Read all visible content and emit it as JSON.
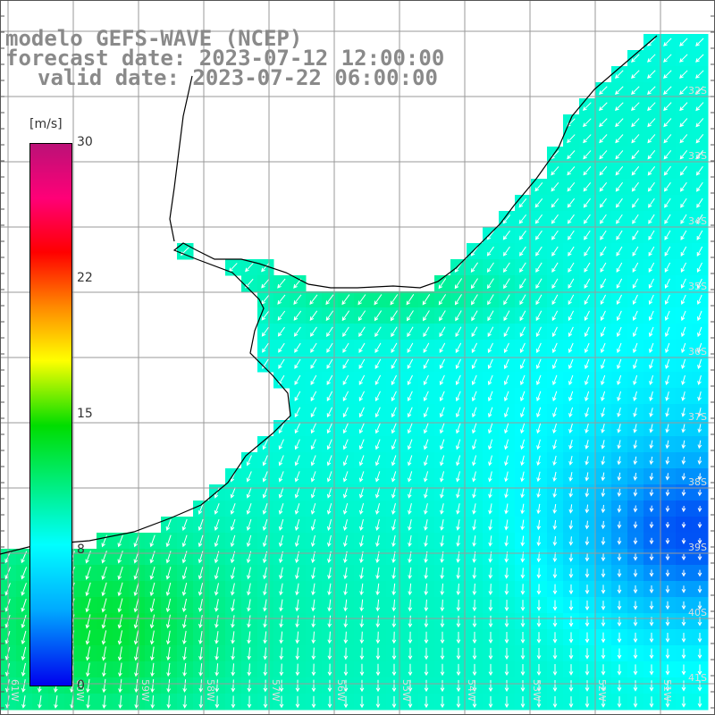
{
  "title": {
    "line1": "modelo GEFS-WAVE (NCEP)",
    "line2": "forecast date: 2023-07-12 12:00:00",
    "line3": "valid date: 2023-07-22 06:00:00"
  },
  "colorbar": {
    "unit": "[m/s]",
    "ticks": [
      "30",
      "22",
      "15",
      "8",
      "0"
    ]
  },
  "map_grid": {
    "lat_labels": [
      "32S",
      "33S",
      "34S",
      "35S",
      "36S",
      "37S",
      "38S",
      "39S",
      "40S",
      "41S"
    ],
    "lon_labels": [
      "61W",
      "60W",
      "59W",
      "58W",
      "57W",
      "56W",
      "55W",
      "54W",
      "53W",
      "52W",
      "51W"
    ]
  },
  "colors": {
    "title_gray": "#8a8a8a",
    "grid_gray": "#9a9a9a",
    "coast": "#000000",
    "arrows": "#ffffff"
  }
}
